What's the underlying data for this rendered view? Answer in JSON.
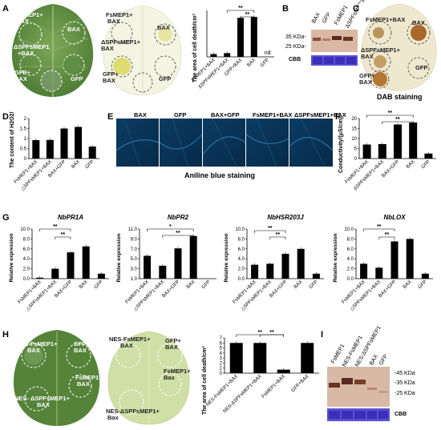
{
  "panels": {
    "A": {
      "letter": "A",
      "leaf1_labels": [
        "FsMEP1+",
        "BAX",
        "BAX",
        "ΔSPFsMEP1",
        "+BAX",
        "GFP+",
        "BAX",
        "GFP"
      ],
      "leaf2_labels": [
        "FsMEP1+",
        "BAX",
        "BAX",
        "ΔSPFsMEP1+",
        "BAX",
        "GFP+",
        "BAX",
        "GFP"
      ],
      "chart": {
        "ylabel": "The area of cell death/cm²",
        "nd": "nd",
        "sig": [
          "**",
          "**"
        ],
        "categories": [
          "FsMEP1+BAX",
          "ΔSPFsMEP1+BAX",
          "GFP+BAX",
          "BAX",
          "GFP"
        ]
      }
    },
    "B": {
      "letter": "B",
      "lanes": [
        "BAX",
        "GFP",
        "FsMEP1",
        "ΔSPFsMEP1"
      ],
      "markers": [
        "35 KDa-",
        "25 KDa-"
      ],
      "cbb": "CBB"
    },
    "C": {
      "letter": "C",
      "labels": [
        "FsMEP1+BAX",
        "BAX",
        "ΔSPFsMEP1+",
        "BAX",
        "GFP+",
        "BAX",
        "GFP"
      ],
      "caption": "DAB staining"
    },
    "D": {
      "letter": "D",
      "ylabel": "The content of H2O2/",
      "categories": [
        "FsMEP1+BAX",
        "△SPFsMEP1+BAX",
        "BAX+GFP",
        "BAX",
        "GFP"
      ],
      "ticks": [
        "0",
        "0.5",
        "1",
        "1.5",
        "2"
      ]
    },
    "E": {
      "letter": "E",
      "tiles": [
        "BAX",
        "GFP",
        "BAX+GFP",
        "FsMEP1+BAX",
        "ΔSPFsMEP1+BAX"
      ],
      "caption": "Aniline blue staining"
    },
    "F": {
      "letter": "F",
      "ylabel": "Conductivity/(μS/cm)",
      "sig": [
        "**",
        "**"
      ],
      "categories": [
        "FsMEP1+BAX",
        "ΔSPFsMEP1+BAX",
        "BAX+GFP",
        "BAX",
        "GFP"
      ],
      "ticks": [
        "0",
        "5",
        "10",
        "15",
        "20"
      ]
    },
    "G": {
      "letter": "G",
      "ylabel": "Relative expression",
      "categories": [
        "FsMEP1+BAX",
        "△SPFsMEP1+BAX",
        "BAX+GFP",
        "BAX",
        "GFP"
      ],
      "genes": [
        "NbPR1A",
        "NbPR2",
        "NbHSR203J",
        "NbLOX"
      ]
    },
    "H": {
      "letter": "H",
      "leaf1_labels": [
        "NES-FsMEP1+",
        "BAX",
        "GFP+",
        "BAX",
        "FsMEP1+",
        "BAX",
        "NES- ΔSPFsMEP1+",
        "BAX"
      ],
      "leaf2_labels": [
        "NES-FsMEP1+",
        "BAX",
        "GFP+",
        "BAX",
        "FsMEP1+",
        "Bax",
        "NES-ΔSPFsMEP1+",
        "Bax"
      ],
      "ylabel": "The area of cell death/cm²",
      "sig": [
        "**",
        "**"
      ],
      "categories": [
        "NES-FsMEP1+BAX",
        "NES-ΔSPFsMEP1+BAX",
        "FsMEP1+BAX",
        "GFP+BAX"
      ],
      "ticks": [
        "0",
        "1",
        "2",
        "3",
        "4",
        "5",
        "6",
        "7"
      ]
    },
    "I": {
      "letter": "I",
      "lanes": [
        "FsMEP1",
        "NES-FsMEP1",
        "NES-ΔSPFsMEP1",
        "BAX",
        "GFP"
      ],
      "markers": [
        "-45 KDa",
        "-35 KDa",
        "-25 KDa"
      ],
      "cbb": "CBB"
    }
  },
  "chart_data": [
    {
      "type": "bar",
      "panel": "A",
      "categories": [
        "FsMEP1+BAX",
        "ΔSPFsMEP1+BAX",
        "GFP+BAX",
        "BAX",
        "GFP"
      ],
      "values": [
        0.3,
        0.4,
        4.2,
        4.3,
        0
      ],
      "ylabel": "The area of cell death/cm²"
    },
    {
      "type": "bar",
      "panel": "D",
      "categories": [
        "FsMEP1+BAX",
        "△SPFsMEP1+BAX",
        "BAX+GFP",
        "BAX",
        "GFP"
      ],
      "values": [
        0.92,
        0.93,
        1.5,
        1.58,
        0.6
      ],
      "ylim": [
        0,
        2
      ],
      "ylabel": "The content of H2O2/"
    },
    {
      "type": "bar",
      "panel": "F",
      "categories": [
        "FsMEP1+BAX",
        "ΔSPFsMEP1+BAX",
        "BAX+GFP",
        "BAX",
        "GFP"
      ],
      "values": [
        7,
        7.2,
        17,
        18,
        2.5
      ],
      "ylim": [
        0,
        20
      ],
      "ylabel": "Conductivity/(μS/cm)"
    },
    {
      "type": "bar",
      "panel": "G",
      "title": "NbPR1A",
      "categories": [
        "FsMEP1+BAX",
        "△SPFsMEP1+BAX",
        "BAX+GFP",
        "BAX",
        "GFP"
      ],
      "values": [
        0.2,
        2.0,
        5.3,
        6.5,
        1.0
      ],
      "ylim": [
        0,
        10
      ],
      "ticks": [
        "0.0",
        "2.0",
        "4.0",
        "6.0",
        "8.0",
        "10.0"
      ]
    },
    {
      "type": "bar",
      "panel": "G",
      "title": "NbPR2",
      "categories": [
        "FsMEP1+BAX",
        "△SPFsMEP1+BAX",
        "BAX+GFP",
        "BAX",
        "GFP"
      ],
      "values": [
        5.6,
        3.6,
        7.1,
        9.6,
        1.0
      ],
      "ylim": [
        1,
        11
      ],
      "ticks": [
        "1.0",
        "3.0",
        "5.0",
        "7.0",
        "9.0",
        "11.0"
      ]
    },
    {
      "type": "bar",
      "panel": "G",
      "title": "NbHSR203J",
      "categories": [
        "FsMEP1+BAX",
        "△SPFsMEP1+BAX",
        "BAX+GFP",
        "BAX",
        "GFP"
      ],
      "values": [
        2.8,
        3.0,
        5.0,
        6.0,
        1.0
      ],
      "ylim": [
        0,
        10
      ],
      "ticks": [
        "0.0",
        "2.0",
        "4.0",
        "6.0",
        "8.0",
        "10.0"
      ]
    },
    {
      "type": "bar",
      "panel": "G",
      "title": "NbLOX",
      "categories": [
        "FsMEP1+BAX",
        "△SPFsMEP1+BAX",
        "BAX+GFP",
        "BAX",
        "GFP"
      ],
      "values": [
        3.0,
        2.2,
        7.5,
        8.0,
        1.0
      ],
      "ylim": [
        0,
        10
      ],
      "ticks": [
        "0.0",
        "2.0",
        "4.0",
        "6.0",
        "8.0",
        "10.0"
      ]
    },
    {
      "type": "bar",
      "panel": "H",
      "categories": [
        "NES-FsMEP1+BAX",
        "NES-ΔSPFsMEP1+BAX",
        "FsMEP1+BAX",
        "GFP+BAX"
      ],
      "values": [
        6,
        6,
        0.7,
        6
      ],
      "ylim": [
        0,
        7
      ],
      "ylabel": "The area of cell death/cm²"
    }
  ]
}
